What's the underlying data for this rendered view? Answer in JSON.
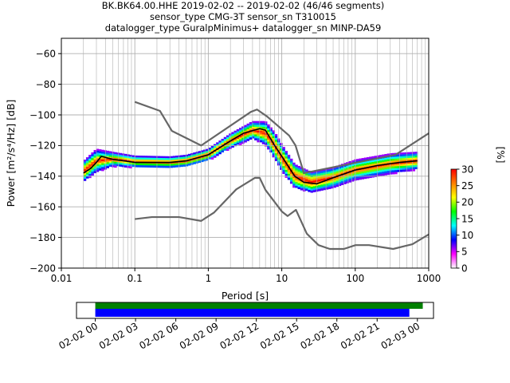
{
  "header": {
    "title_lines": [
      "BK.BK64.00.HHE   2019-02-02 -- 2019-02-02  (46/46 segments)",
      "sensor_type CMG-3T sensor_sn T310015",
      "datalogger_type GuralpMinimus+ datalogger_sn MINP-DA59"
    ]
  },
  "chart_data": [
    {
      "type": "heatmap",
      "xlabel": "Period [s]",
      "ylabel": "Power [m²/s⁴/Hz] [dB]",
      "xscale": "log",
      "xlim": [
        0.01,
        1000
      ],
      "ylim": [
        -200,
        -50
      ],
      "xticks": [
        0.01,
        0.1,
        1,
        10,
        100,
        1000
      ],
      "xtick_labels": [
        "0.01",
        "0.1",
        "1",
        "10",
        "100",
        "1000"
      ],
      "yticks": [
        -200,
        -180,
        -160,
        -140,
        -120,
        -100,
        -80,
        -60
      ],
      "grid": true,
      "colorbar": {
        "label": "[%]",
        "ticks": [
          0,
          5,
          10,
          15,
          20,
          25,
          30
        ],
        "range": [
          0,
          30
        ],
        "colormap": "pqlx",
        "colors": [
          "#ffffff",
          "#ff00ff",
          "#0000ff",
          "#00ffff",
          "#00ff00",
          "#ffff00",
          "#ff8000",
          "#ff0000"
        ]
      },
      "series": [
        {
          "role": "noise-model-high",
          "color": "#666666",
          "points": [
            [
              0.1,
              -91.5
            ],
            [
              0.22,
              -97.4
            ],
            [
              0.32,
              -110.5
            ],
            [
              0.8,
              -120
            ],
            [
              3.8,
              -98
            ],
            [
              4.6,
              -96.5
            ],
            [
              6.3,
              -101
            ],
            [
              12.6,
              -113.5
            ],
            [
              15.4,
              -120
            ],
            [
              20,
              -138
            ],
            [
              354,
              -126
            ],
            [
              1000,
              -112
            ]
          ]
        },
        {
          "role": "noise-model-low",
          "color": "#666666",
          "points": [
            [
              0.1,
              -168
            ],
            [
              0.17,
              -166.7
            ],
            [
              0.4,
              -166.7
            ],
            [
              0.8,
              -169.2
            ],
            [
              1.2,
              -163.7
            ],
            [
              2.4,
              -148.6
            ],
            [
              4.3,
              -141.1
            ],
            [
              5,
              -141.1
            ],
            [
              6,
              -149
            ],
            [
              10,
              -163
            ],
            [
              12,
              -166
            ],
            [
              15.6,
              -162
            ],
            [
              21.9,
              -177.5
            ],
            [
              31.6,
              -185
            ],
            [
              45,
              -187.5
            ],
            [
              70,
              -187.5
            ],
            [
              101,
              -185
            ],
            [
              154,
              -185
            ],
            [
              328,
              -187.5
            ],
            [
              600,
              -184.4
            ],
            [
              1000,
              -178
            ]
          ]
        },
        {
          "role": "median",
          "color": "#000000",
          "points": [
            [
              0.02,
              -138
            ],
            [
              0.025,
              -135
            ],
            [
              0.03,
              -131
            ],
            [
              0.035,
              -127
            ],
            [
              0.05,
              -129
            ],
            [
              0.1,
              -131
            ],
            [
              0.3,
              -131
            ],
            [
              0.5,
              -130
            ],
            [
              1,
              -126
            ],
            [
              2,
              -117
            ],
            [
              3,
              -112
            ],
            [
              5,
              -109
            ],
            [
              6,
              -110
            ],
            [
              8,
              -120
            ],
            [
              10,
              -127
            ],
            [
              15,
              -140
            ],
            [
              20,
              -144
            ],
            [
              30,
              -145
            ],
            [
              50,
              -141
            ],
            [
              100,
              -136
            ],
            [
              200,
              -133
            ],
            [
              400,
              -131
            ],
            [
              700,
              -130
            ]
          ]
        }
      ],
      "density": [
        {
          "period": 0.02,
          "center": -137,
          "spread": 4,
          "wing": 7
        },
        {
          "period": 0.03,
          "center": -130,
          "spread": 3.5,
          "wing": 8
        },
        {
          "period": 0.05,
          "center": -129,
          "spread": 2.2,
          "wing": 5
        },
        {
          "period": 0.1,
          "center": -130.5,
          "spread": 1.8,
          "wing": 4
        },
        {
          "period": 0.3,
          "center": -131,
          "spread": 1.8,
          "wing": 4
        },
        {
          "period": 0.5,
          "center": -130,
          "spread": 2,
          "wing": 4
        },
        {
          "period": 1,
          "center": -126,
          "spread": 2,
          "wing": 4
        },
        {
          "period": 2,
          "center": -117,
          "spread": 2.5,
          "wing": 5
        },
        {
          "period": 4,
          "center": -110,
          "spread": 3,
          "wing": 6
        },
        {
          "period": 6,
          "center": -112,
          "spread": 4,
          "wing": 8
        },
        {
          "period": 8,
          "center": -120,
          "spread": 5,
          "wing": 9
        },
        {
          "period": 10,
          "center": -128,
          "spread": 5,
          "wing": 9
        },
        {
          "period": 15,
          "center": -140,
          "spread": 5,
          "wing": 8
        },
        {
          "period": 25,
          "center": -144,
          "spread": 4,
          "wing": 7
        },
        {
          "period": 50,
          "center": -141,
          "spread": 3.5,
          "wing": 7
        },
        {
          "period": 100,
          "center": -136,
          "spread": 3,
          "wing": 7
        },
        {
          "period": 300,
          "center": -132,
          "spread": 3,
          "wing": 7
        },
        {
          "period": 700,
          "center": -130,
          "spread": 3,
          "wing": 6
        }
      ]
    },
    {
      "type": "timeline",
      "tick_labels": [
        "02-02 00",
        "02-02 03",
        "02-02 06",
        "02-02 09",
        "02-02 12",
        "02-02 15",
        "02-02 18",
        "02-02 21",
        "02-03 00"
      ],
      "xlim_hours": [
        -1.4,
        25.2
      ],
      "bars": [
        {
          "color": "#008000",
          "start_hours": 0,
          "end_hours": 24.4
        },
        {
          "color": "#0000ff",
          "start_hours": 0,
          "end_hours": 23.4
        }
      ]
    }
  ]
}
